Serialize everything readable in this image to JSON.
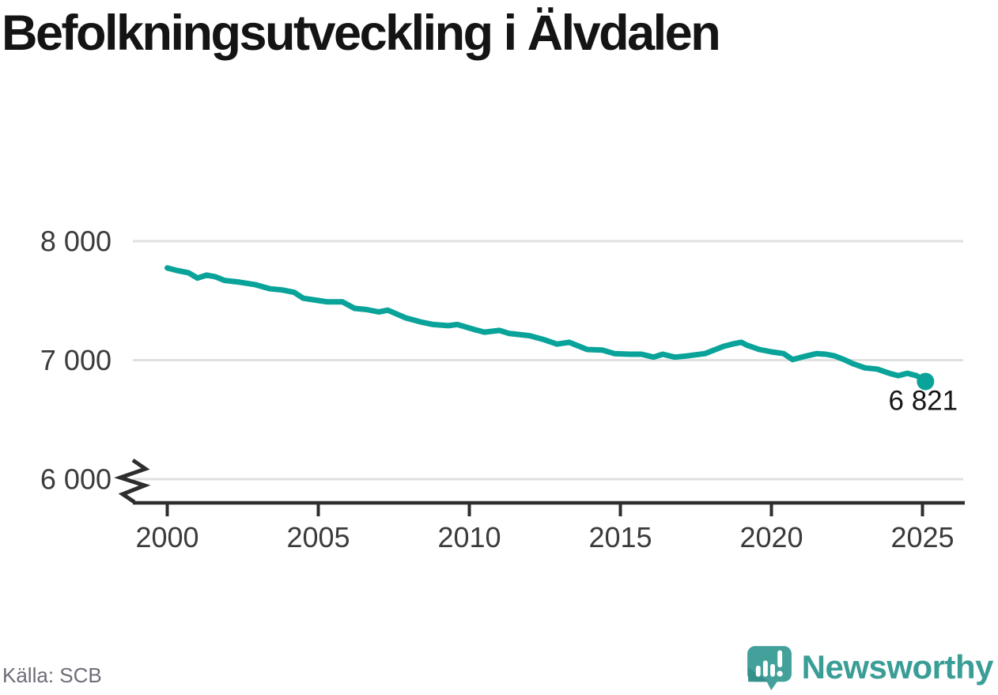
{
  "header": {
    "title": "Befolkningsutveckling i Älvdalen"
  },
  "footer": {
    "source": "Källa: SCB",
    "brand": "Newsworthy"
  },
  "colors": {
    "line": "#09a39a",
    "grid": "#e0e0e0",
    "axis": "#2e2e2e",
    "tick_text": "#3b3b3b",
    "title_text": "#141414",
    "annotation_text": "#161616",
    "source_text": "#6d6d77",
    "brand_teal": "#3a9d96",
    "brand_icon_shade": "#35908a"
  },
  "chart_data": {
    "type": "line",
    "title": "Befolkningsutveckling i Älvdalen",
    "xlabel": "",
    "ylabel": "",
    "grid": "horizontal",
    "axis_break_below": 6000,
    "ylim_visible": [
      6000,
      8000
    ],
    "xlim": [
      1998.9,
      2026.3
    ],
    "x_ticks": {
      "years": [
        2000,
        2005,
        2010,
        2015,
        2020,
        2025
      ],
      "labels": [
        "2000",
        "2005",
        "2010",
        "2015",
        "2020",
        "2025"
      ]
    },
    "y_ticks": {
      "values": [
        8000,
        7000,
        6000
      ],
      "labels": [
        "8 000",
        "7 000",
        "6 000"
      ]
    },
    "annotation": "6 821",
    "last_value": 6821,
    "series": [
      {
        "name": "Folkmängd",
        "color": "#09a39a",
        "points": [
          [
            2000.0,
            7775
          ],
          [
            2000.3,
            7755
          ],
          [
            2000.7,
            7735
          ],
          [
            2001.0,
            7690
          ],
          [
            2001.3,
            7715
          ],
          [
            2001.6,
            7700
          ],
          [
            2001.9,
            7670
          ],
          [
            2002.4,
            7655
          ],
          [
            2002.9,
            7635
          ],
          [
            2003.4,
            7600
          ],
          [
            2003.8,
            7590
          ],
          [
            2004.2,
            7570
          ],
          [
            2004.5,
            7520
          ],
          [
            2004.9,
            7505
          ],
          [
            2005.3,
            7490
          ],
          [
            2005.8,
            7490
          ],
          [
            2006.2,
            7435
          ],
          [
            2006.6,
            7425
          ],
          [
            2007.0,
            7405
          ],
          [
            2007.3,
            7420
          ],
          [
            2007.9,
            7355
          ],
          [
            2008.4,
            7320
          ],
          [
            2008.8,
            7300
          ],
          [
            2009.3,
            7290
          ],
          [
            2009.6,
            7300
          ],
          [
            2010.2,
            7255
          ],
          [
            2010.5,
            7235
          ],
          [
            2011.0,
            7250
          ],
          [
            2011.3,
            7225
          ],
          [
            2012.0,
            7205
          ],
          [
            2012.5,
            7170
          ],
          [
            2012.9,
            7135
          ],
          [
            2013.3,
            7150
          ],
          [
            2013.9,
            7090
          ],
          [
            2014.4,
            7085
          ],
          [
            2014.8,
            7055
          ],
          [
            2015.3,
            7050
          ],
          [
            2015.7,
            7050
          ],
          [
            2016.1,
            7025
          ],
          [
            2016.4,
            7050
          ],
          [
            2016.8,
            7025
          ],
          [
            2017.2,
            7035
          ],
          [
            2017.8,
            7055
          ],
          [
            2018.1,
            7085
          ],
          [
            2018.4,
            7115
          ],
          [
            2018.7,
            7135
          ],
          [
            2019.0,
            7150
          ],
          [
            2019.2,
            7125
          ],
          [
            2019.6,
            7090
          ],
          [
            2020.0,
            7070
          ],
          [
            2020.4,
            7055
          ],
          [
            2020.7,
            7005
          ],
          [
            2021.0,
            7025
          ],
          [
            2021.5,
            7055
          ],
          [
            2021.8,
            7050
          ],
          [
            2022.1,
            7035
          ],
          [
            2022.4,
            7005
          ],
          [
            2022.7,
            6970
          ],
          [
            2023.1,
            6935
          ],
          [
            2023.5,
            6925
          ],
          [
            2023.9,
            6890
          ],
          [
            2024.2,
            6870
          ],
          [
            2024.5,
            6890
          ],
          [
            2024.8,
            6870
          ],
          [
            2025.1,
            6821
          ]
        ]
      }
    ]
  }
}
